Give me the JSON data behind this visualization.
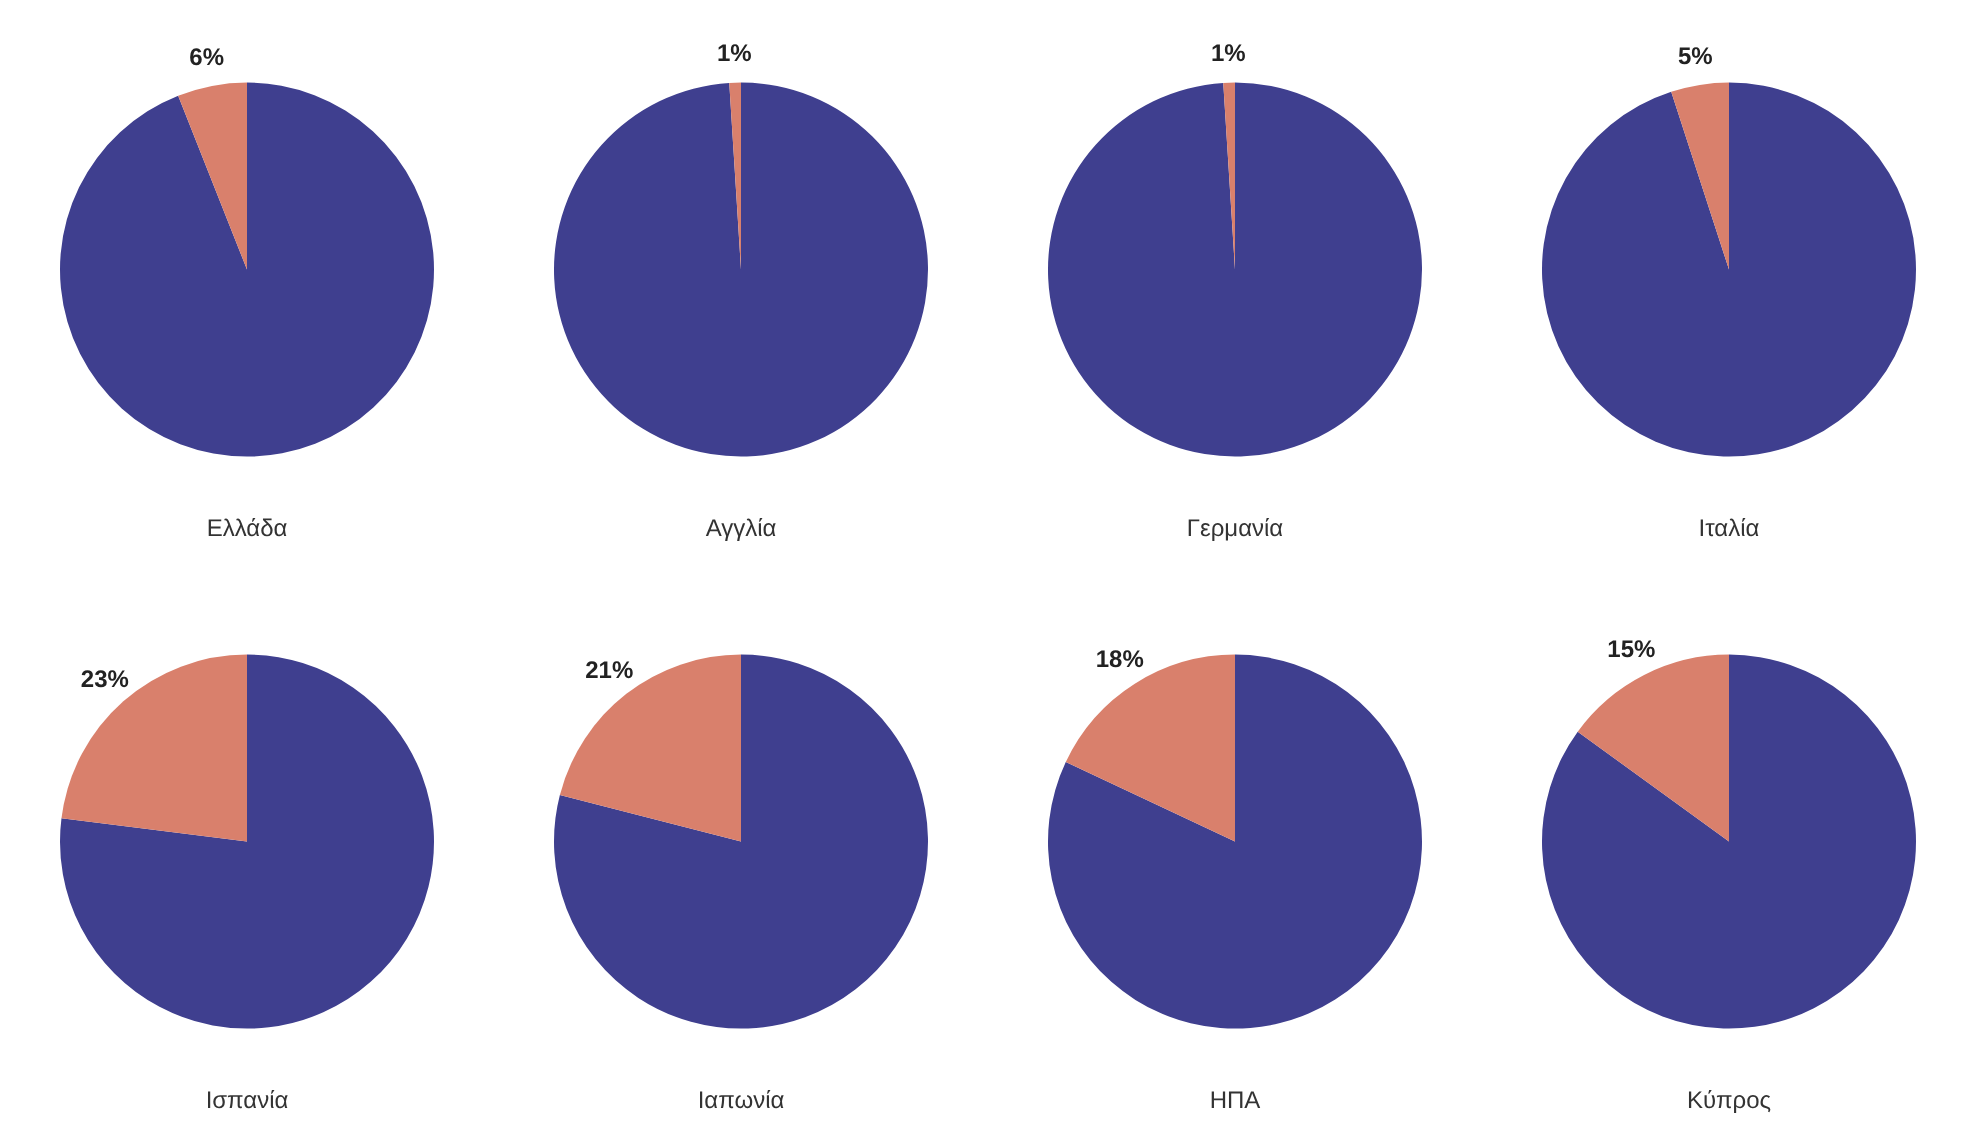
{
  "chart_data": [
    {
      "type": "pie",
      "title": "Ελλάδα",
      "categories": [
        null,
        null
      ],
      "values": [
        94,
        6
      ],
      "value_labels": [
        null,
        "6%"
      ],
      "colors": [
        "#3f3f8f",
        "#d9806c"
      ]
    },
    {
      "type": "pie",
      "title": "Αγγλία",
      "categories": [
        null,
        null
      ],
      "values": [
        99,
        1
      ],
      "value_labels": [
        null,
        "1%"
      ],
      "colors": [
        "#3f3f8f",
        "#d9806c"
      ]
    },
    {
      "type": "pie",
      "title": "Γερμανία",
      "categories": [
        null,
        null
      ],
      "values": [
        99,
        1
      ],
      "value_labels": [
        null,
        "1%"
      ],
      "colors": [
        "#3f3f8f",
        "#d9806c"
      ]
    },
    {
      "type": "pie",
      "title": "Ιταλία",
      "categories": [
        null,
        null
      ],
      "values": [
        95,
        5
      ],
      "value_labels": [
        null,
        "5%"
      ],
      "colors": [
        "#3f3f8f",
        "#d9806c"
      ]
    },
    {
      "type": "pie",
      "title": "Ισπανία",
      "categories": [
        null,
        null
      ],
      "values": [
        77,
        23
      ],
      "value_labels": [
        null,
        "23%"
      ],
      "colors": [
        "#3f3f8f",
        "#d9806c"
      ]
    },
    {
      "type": "pie",
      "title": "Ιαπωνία",
      "categories": [
        null,
        null
      ],
      "values": [
        79,
        21
      ],
      "value_labels": [
        null,
        "21%"
      ],
      "colors": [
        "#3f3f8f",
        "#d9806c"
      ]
    },
    {
      "type": "pie",
      "title": "ΗΠΑ",
      "categories": [
        null,
        null
      ],
      "values": [
        82,
        18
      ],
      "value_labels": [
        null,
        "18%"
      ],
      "colors": [
        "#3f3f8f",
        "#d9806c"
      ]
    },
    {
      "type": "pie",
      "title": "Κύπρος",
      "categories": [
        null,
        null
      ],
      "values": [
        85,
        15
      ],
      "value_labels": [
        null,
        "15%"
      ],
      "colors": [
        "#3f3f8f",
        "#d9806c"
      ]
    }
  ]
}
